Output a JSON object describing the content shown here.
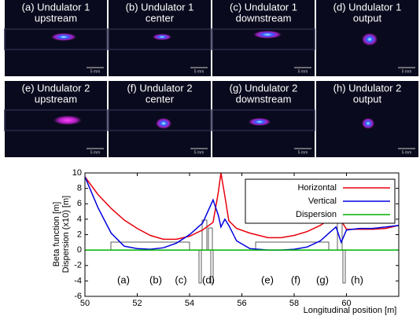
{
  "panels": [
    {
      "title": "(a) Undulator 1",
      "subtitle": "upstream"
    },
    {
      "title": "(b) Undulator 1",
      "subtitle": "center"
    },
    {
      "title": "(c) Undulator 1",
      "subtitle": "downstream"
    },
    {
      "title": "(d) Undulator 1",
      "subtitle": "output"
    },
    {
      "title": "(e) Undulator 2",
      "subtitle": "upstream"
    },
    {
      "title": "(f) Undulator 2",
      "subtitle": "center"
    },
    {
      "title": "(g) Undulator 2",
      "subtitle": "downstream"
    },
    {
      "title": "(h) Undulator 2",
      "subtitle": "output"
    }
  ],
  "scale_label": "5 mm",
  "chart_data": {
    "type": "line",
    "y_labels": [
      "Beta function [m]",
      "Dispersion (x10) [m]"
    ],
    "x_label": "Longitudinal position [m]",
    "x": [
      50,
      50.5,
      51,
      51.5,
      52,
      52.5,
      53,
      53.5,
      54,
      54.5,
      54.9,
      55.1,
      55.2,
      55.35,
      55.5,
      55.8,
      56.3,
      57,
      57.5,
      58,
      58.5,
      59,
      59.4,
      59.6,
      59.8,
      60,
      60.5,
      61,
      61.5,
      62
    ],
    "series": [
      {
        "name": "Horizontal",
        "color": "#e8000b",
        "values": [
          9.5,
          7.2,
          5.4,
          3.9,
          2.8,
          1.9,
          1.4,
          1.4,
          1.8,
          2.6,
          3.6,
          7.5,
          10,
          7,
          3.8,
          2.8,
          2.2,
          1.6,
          1.6,
          1.9,
          2.4,
          3.2,
          4.1,
          4.6,
          3.8,
          2.7,
          2.7,
          2.7,
          2.8,
          3.2
        ]
      },
      {
        "name": "Vertical",
        "color": "#0000e0",
        "values": [
          9.5,
          5.5,
          2.2,
          0.5,
          0.2,
          0.1,
          0.3,
          0.9,
          2.0,
          3.5,
          6.5,
          4.5,
          3.0,
          4.0,
          3.2,
          1.2,
          0.2,
          0.0,
          0.0,
          0.1,
          0.4,
          1.2,
          2.4,
          3.0,
          1.0,
          2.6,
          2.8,
          2.8,
          3.0,
          3.2
        ]
      },
      {
        "name": "Dispersion",
        "color": "#00b000",
        "values": [
          0,
          0,
          0,
          0,
          0,
          0,
          0,
          0,
          0,
          0,
          0,
          0,
          0,
          0,
          0,
          0,
          0,
          0,
          0,
          0,
          0,
          0,
          0,
          0,
          0,
          0,
          0,
          0,
          0,
          0
        ]
      }
    ],
    "xlim": [
      50,
      62
    ],
    "xticks": [
      50,
      52,
      54,
      56,
      58,
      60
    ],
    "ylim": [
      -6,
      10
    ],
    "yticks": [
      -6,
      -4,
      -2,
      0,
      2,
      4,
      6,
      8,
      10
    ],
    "legend": "upper right",
    "annotations": [
      "(a)",
      "(b)",
      "(c)",
      "(d)",
      "(e)",
      "(f)",
      "(g)",
      "(h)"
    ]
  }
}
